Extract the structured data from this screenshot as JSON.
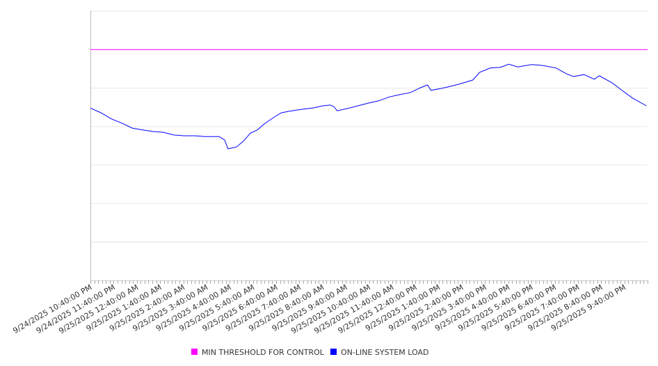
{
  "chart_data": {
    "type": "line",
    "title": "",
    "xlabel": "",
    "ylabel": "",
    "x_units": "hours since 9/24/2025 10:40:00 PM",
    "xlim": [
      0,
      24
    ],
    "ylim": [
      0,
      700
    ],
    "y_tick_labels_shown": false,
    "grid": true,
    "legend_placement": "bottom-center",
    "x_tick_labels": [
      "9/24/2025 10:40:00 PM",
      "9/24/2025 11:40:00 PM",
      "9/25/2025 12:40:00 AM",
      "9/25/2025 1:40:00 AM",
      "9/25/2025 2:40:00 AM",
      "9/25/2025 3:40:00 AM",
      "9/25/2025 4:40:00 AM",
      "9/25/2025 5:40:00 AM",
      "9/25/2025 6:40:00 AM",
      "9/25/2025 7:40:00 AM",
      "9/25/2025 8:40:00 AM",
      "9/25/2025 9:40:00 AM",
      "9/25/2025 10:40:00 AM",
      "9/25/2025 11:40:00 AM",
      "9/25/2025 12:40:00 PM",
      "9/25/2025 1:40:00 PM",
      "9/25/2025 2:40:00 PM",
      "9/25/2025 3:40:00 PM",
      "9/25/2025 4:40:00 PM",
      "9/25/2025 5:40:00 PM",
      "9/25/2025 6:40:00 PM",
      "9/25/2025 7:40:00 PM",
      "9/25/2025 8:40:00 PM",
      "9/25/2025 9:40:00 PM"
    ],
    "series": [
      {
        "name": "MIN THRESHOLD FOR CONTROL",
        "color": "#ff00ff",
        "x": [
          0,
          24
        ],
        "values": [
          600,
          600
        ]
      },
      {
        "name": "ON-LINE SYSTEM LOAD",
        "color": "#0000ff",
        "x": [
          0,
          0.45,
          0.9,
          1.35,
          1.8,
          2.25,
          2.7,
          3.14,
          3.59,
          4.04,
          4.49,
          4.94,
          5.54,
          5.78,
          5.93,
          6.29,
          6.59,
          6.89,
          7.19,
          7.49,
          7.93,
          8.23,
          8.68,
          9.13,
          9.58,
          10.03,
          10.33,
          10.48,
          10.63,
          11.08,
          11.53,
          11.98,
          12.43,
          12.87,
          13.32,
          13.77,
          14.22,
          14.52,
          14.67,
          15.27,
          15.87,
          16.47,
          16.77,
          17.22,
          17.66,
          18.02,
          18.41,
          19.01,
          19.46,
          20.06,
          20.51,
          20.81,
          21.26,
          21.71,
          21.92,
          22.46,
          22.9,
          23.35,
          23.95
        ],
        "values": [
          448,
          436,
          420,
          409,
          396,
          391,
          387,
          385,
          378,
          376,
          376,
          374,
          374,
          365,
          342,
          347,
          362,
          383,
          391,
          407,
          425,
          436,
          441,
          445,
          448,
          454,
          456,
          452,
          441,
          447,
          454,
          461,
          467,
          477,
          483,
          488,
          501,
          508,
          494,
          501,
          510,
          521,
          541,
          552,
          554,
          562,
          555,
          561,
          559,
          552,
          537,
          530,
          535,
          523,
          532,
          514,
          494,
          474,
          454
        ]
      }
    ]
  }
}
